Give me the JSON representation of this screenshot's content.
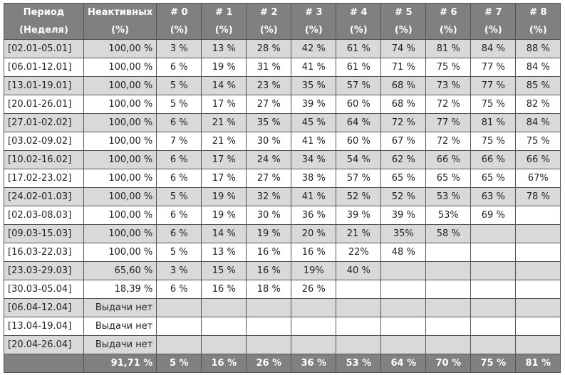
{
  "headers": [
    {
      "line1": "Период",
      "line2": "(Неделя)"
    },
    {
      "line1": "Неактивных",
      "line2": "(%)"
    },
    {
      "line1": "# 0",
      "line2": "(%)"
    },
    {
      "line1": "# 1",
      "line2": "(%)"
    },
    {
      "line1": "# 2",
      "line2": "(%)"
    },
    {
      "line1": "# 3",
      "line2": "(%)"
    },
    {
      "line1": "# 4",
      "line2": "(%)"
    },
    {
      "line1": "# 5",
      "line2": "(%)"
    },
    {
      "line1": "# 6",
      "line2": "(%)"
    },
    {
      "line1": "# 7",
      "line2": "(%)"
    },
    {
      "line1": "# 8",
      "line2": "(%)"
    }
  ],
  "rows": [
    {
      "period": "[02.01-05.01]",
      "inactive": "100,00 %",
      "cells": [
        "3 %",
        "13 %",
        "28 %",
        "42 %",
        "61 %",
        "74 %",
        "81 %",
        "84 %",
        "88 %"
      ]
    },
    {
      "period": "[06.01-12.01]",
      "inactive": "100,00 %",
      "cells": [
        "6 %",
        "19 %",
        "31 %",
        "41 %",
        "61 %",
        "71 %",
        "75 %",
        "77 %",
        "84 %"
      ]
    },
    {
      "period": "[13.01-19.01]",
      "inactive": "100,00 %",
      "cells": [
        "5 %",
        "14 %",
        "23 %",
        "35 %",
        "57 %",
        "68 %",
        "73 %",
        "77 %",
        "85 %"
      ]
    },
    {
      "period": "[20.01-26.01]",
      "inactive": "100,00 %",
      "cells": [
        "5 %",
        "17 %",
        "27 %",
        "39 %",
        "60 %",
        "68 %",
        "72 %",
        "75 %",
        "82 %"
      ]
    },
    {
      "period": "[27.01-02.02]",
      "inactive": "100,00 %",
      "cells": [
        "6 %",
        "21 %",
        "35 %",
        "45 %",
        "64 %",
        "72 %",
        "77 %",
        "81 %",
        "84 %"
      ]
    },
    {
      "period": "[03.02-09.02]",
      "inactive": "100,00 %",
      "cells": [
        "7 %",
        "21 %",
        "30 %",
        "41 %",
        "60 %",
        "67 %",
        "72 %",
        "75 %",
        "75 %"
      ]
    },
    {
      "period": "[10.02-16.02]",
      "inactive": "100,00 %",
      "cells": [
        "6 %",
        "17 %",
        "24 %",
        "34 %",
        "54 %",
        "62 %",
        "66 %",
        "66 %",
        "66 %"
      ]
    },
    {
      "period": "[17.02-23.02]",
      "inactive": "100,00 %",
      "cells": [
        "6 %",
        "17 %",
        "27 %",
        "38 %",
        "57 %",
        "65 %",
        "65 %",
        "65 %",
        "67%"
      ]
    },
    {
      "period": "[24.02-01.03]",
      "inactive": "100,00 %",
      "cells": [
        "5 %",
        "19 %",
        "32 %",
        "41 %",
        "52 %",
        "52 %",
        "53 %",
        "63 %",
        "78 %"
      ]
    },
    {
      "period": "[02.03-08.03]",
      "inactive": "100,00 %",
      "cells": [
        "6 %",
        "19 %",
        "30 %",
        "36 %",
        "39 %",
        "39 %",
        "53%",
        "69 %",
        ""
      ]
    },
    {
      "period": "[09.03-15.03]",
      "inactive": "100,00 %",
      "cells": [
        "6 %",
        "14 %",
        "19 %",
        "20 %",
        "21 %",
        "35%",
        "58 %",
        "",
        ""
      ]
    },
    {
      "period": "[16.03-22.03]",
      "inactive": "100,00 %",
      "cells": [
        "5 %",
        "13 %",
        "16 %",
        "16 %",
        "22%",
        "48 %",
        "",
        "",
        ""
      ]
    },
    {
      "period": "[23.03-29.03]",
      "inactive": "65,60 %",
      "cells": [
        "3 %",
        "15 %",
        "16 %",
        "19%",
        "40 %",
        "",
        "",
        "",
        ""
      ]
    },
    {
      "period": "[30.03-05.04]",
      "inactive": "18,39 %",
      "cells": [
        "6 %",
        "16 %",
        "18 %",
        "26 %",
        "",
        "",
        "",
        "",
        ""
      ]
    },
    {
      "period": "[06.04-12.04]",
      "inactive": "Выдачи нет",
      "cells": [
        "",
        "",
        "",
        "",
        "",
        "",
        "",
        "",
        ""
      ]
    },
    {
      "period": "[13.04-19.04]",
      "inactive": "Выдачи нет",
      "cells": [
        "",
        "",
        "",
        "",
        "",
        "",
        "",
        "",
        ""
      ]
    },
    {
      "period": "[20.04-26.04]",
      "inactive": "Выдачи нет",
      "cells": [
        "",
        "",
        "",
        "",
        "",
        "",
        "",
        "",
        ""
      ]
    }
  ],
  "totals": {
    "period": "",
    "inactive": "91,71 %",
    "cells": [
      "5 %",
      "16 %",
      "26 %",
      "36 %",
      "53 %",
      "64 %",
      "70 %",
      "75 %",
      "81 %"
    ]
  },
  "colors": {
    "header_bg": "#808080",
    "header_text": "#ffffff",
    "shaded_row": "#d9d9d9",
    "border": "#555555"
  }
}
